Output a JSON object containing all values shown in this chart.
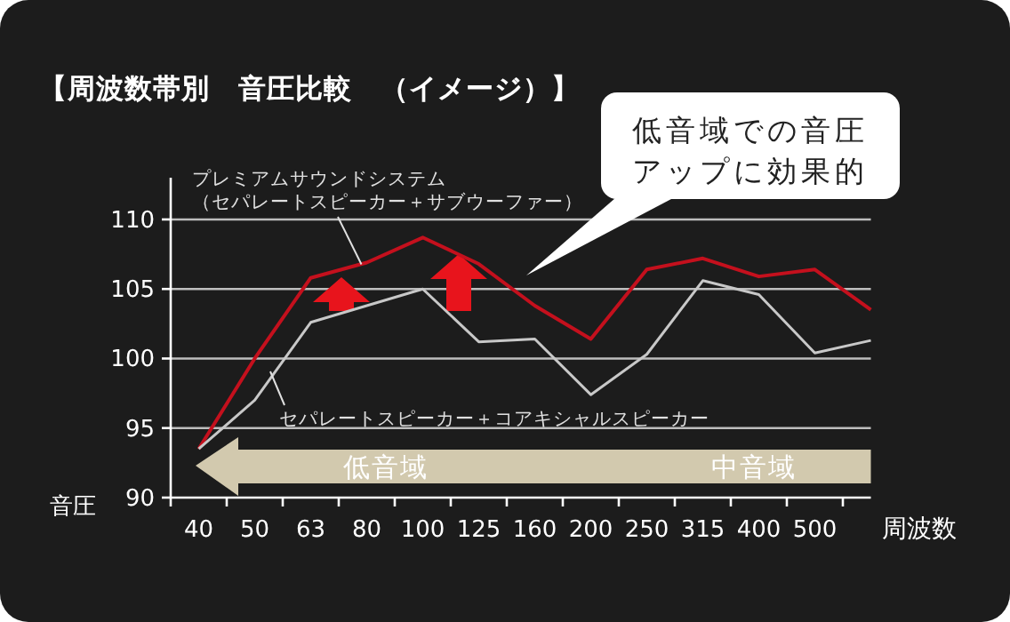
{
  "chart_data": {
    "type": "line",
    "title": "【周波数帯別　音圧比較　（イメージ）】",
    "xlabel": "周波数",
    "ylabel": "音圧",
    "categories": [
      "40",
      "50",
      "63",
      "80",
      "100",
      "125",
      "160",
      "200",
      "250",
      "315",
      "400",
      "500",
      null
    ],
    "series": [
      {
        "name": "プレミアムサウンドシステム（セパレートスピーカー＋サブウーファー）",
        "color": "#c4101d",
        "values": [
          93.5,
          100.0,
          105.8,
          106.9,
          108.7,
          106.8,
          103.8,
          101.4,
          106.4,
          107.2,
          105.9,
          106.4,
          103.5
        ]
      },
      {
        "name": "セパレートスピーカー＋コアキシャルスピーカー",
        "color": "#c8c8c8",
        "values": [
          93.5,
          97.0,
          102.6,
          103.8,
          105.0,
          101.2,
          101.4,
          97.4,
          100.3,
          105.6,
          104.6,
          100.4,
          101.3
        ]
      }
    ],
    "ylim": [
      90,
      113
    ],
    "yticks": [
      90,
      95,
      100,
      105,
      110
    ],
    "grid": "y",
    "marker": "none",
    "line_style": "solid",
    "annotations": [
      "低音域での音圧アップに効果的",
      "低音域",
      "中音域"
    ]
  }
}
